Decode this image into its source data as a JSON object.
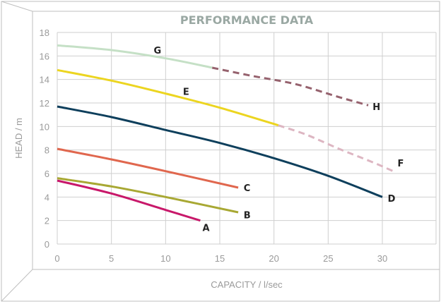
{
  "chart_data": {
    "type": "line",
    "title": "PERFORMANCE DATA",
    "xlabel": "CAPACITY / l/sec",
    "ylabel": "HEAD / m",
    "xlim": [
      0,
      35
    ],
    "ylim": [
      0,
      18
    ],
    "x_ticks": [
      0,
      5,
      10,
      15,
      20,
      25,
      30
    ],
    "y_ticks": [
      0,
      2,
      4,
      6,
      8,
      10,
      12,
      14,
      16,
      18
    ],
    "grid": true,
    "series": [
      {
        "name": "A",
        "color": "#c8186a",
        "dashed": false,
        "points": [
          [
            0,
            5.4
          ],
          [
            5,
            4.3
          ],
          [
            10,
            2.9
          ],
          [
            13.2,
            2.0
          ]
        ]
      },
      {
        "name": "B",
        "color": "#a8a833",
        "dashed": false,
        "points": [
          [
            0,
            5.6
          ],
          [
            5,
            4.9
          ],
          [
            10,
            4.0
          ],
          [
            16.7,
            2.7
          ]
        ]
      },
      {
        "name": "C",
        "color": "#e0674e",
        "dashed": false,
        "points": [
          [
            0,
            8.1
          ],
          [
            5,
            7.2
          ],
          [
            10,
            6.2
          ],
          [
            16.7,
            4.8
          ]
        ]
      },
      {
        "name": "D",
        "color": "#0e3f5c",
        "dashed": false,
        "points": [
          [
            0,
            11.7
          ],
          [
            5,
            10.8
          ],
          [
            10,
            9.7
          ],
          [
            15,
            8.6
          ],
          [
            20,
            7.3
          ],
          [
            25,
            5.8
          ],
          [
            30,
            4.0
          ]
        ]
      },
      {
        "name": "E",
        "color": "#ecd520",
        "dashed": false,
        "points": [
          [
            0,
            14.8
          ],
          [
            5,
            13.9
          ],
          [
            10,
            12.8
          ],
          [
            15,
            11.6
          ],
          [
            20.4,
            10.1
          ]
        ]
      },
      {
        "name": "F",
        "color": "#ddb6c2",
        "dashed": true,
        "points": [
          [
            20.4,
            10.1
          ],
          [
            23,
            9.3
          ],
          [
            26,
            8.1
          ],
          [
            29,
            7.0
          ],
          [
            31,
            6.2
          ]
        ]
      },
      {
        "name": "G",
        "color": "#c5e0c6",
        "dashed": false,
        "points": [
          [
            0,
            16.9
          ],
          [
            5,
            16.5
          ],
          [
            10,
            15.8
          ],
          [
            14.3,
            15.0
          ]
        ]
      },
      {
        "name": "H",
        "color": "#96626e",
        "dashed": true,
        "points": [
          [
            14.3,
            15.0
          ],
          [
            18,
            14.3
          ],
          [
            22,
            13.6
          ],
          [
            26,
            12.5
          ],
          [
            28.7,
            11.8
          ]
        ]
      }
    ],
    "labels": [
      {
        "text": "A",
        "at": [
          13.4,
          1.4
        ]
      },
      {
        "text": "B",
        "at": [
          17.2,
          2.5
        ]
      },
      {
        "text": "C",
        "at": [
          17.2,
          4.8
        ]
      },
      {
        "text": "D",
        "at": [
          30.5,
          3.9
        ]
      },
      {
        "text": "E",
        "at": [
          11.6,
          13.0
        ]
      },
      {
        "text": "F",
        "at": [
          31.4,
          6.9
        ]
      },
      {
        "text": "G",
        "at": [
          8.9,
          16.5
        ]
      },
      {
        "text": "H",
        "at": [
          29.1,
          11.7
        ]
      }
    ]
  }
}
